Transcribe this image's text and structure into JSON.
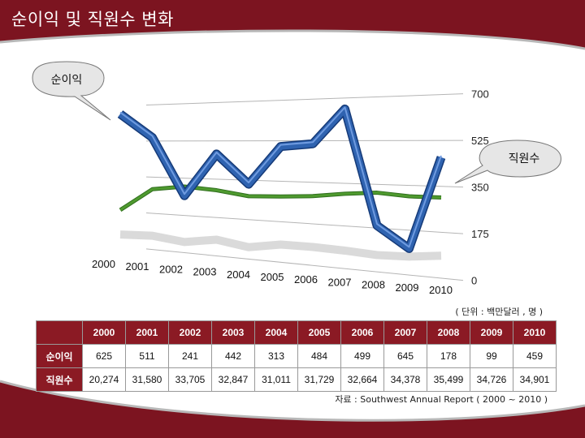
{
  "title": "순이익 및 직원수 변화",
  "unit_note": "( 단위 : 백만달러 , 명 )",
  "source_note": "자료 : Southwest Annual Report ( 2000 ~ 2010 )",
  "colors": {
    "background": "#7c1420",
    "net_income_line": "#2f63b0",
    "employees_line": "#4f9a2f",
    "table_header": "#8b1a24"
  },
  "chart_data": {
    "type": "line",
    "categories": [
      "2000",
      "2001",
      "2002",
      "2003",
      "2004",
      "2005",
      "2006",
      "2007",
      "2008",
      "2009",
      "2010"
    ],
    "series": [
      {
        "name": "순이익",
        "values": [
          625,
          511,
          241,
          442,
          313,
          484,
          499,
          645,
          178,
          99,
          459
        ]
      },
      {
        "name": "직원수",
        "values": [
          20274,
          31580,
          33705,
          32847,
          31011,
          31729,
          32664,
          34378,
          35499,
          34726,
          34901
        ]
      }
    ],
    "yticks": [
      "0",
      "175",
      "350",
      "525",
      "700"
    ],
    "ylim": [
      0,
      700
    ],
    "grid": true
  },
  "table": {
    "header": [
      "",
      "2000",
      "2001",
      "2002",
      "2003",
      "2004",
      "2005",
      "2006",
      "2007",
      "2008",
      "2009",
      "2010"
    ],
    "rows": [
      {
        "label": "순이익",
        "values": [
          "625",
          "511",
          "241",
          "442",
          "313",
          "484",
          "499",
          "645",
          "178",
          "99",
          "459"
        ]
      },
      {
        "label": "직원수",
        "values": [
          "20,274",
          "31,580",
          "33,705",
          "32,847",
          "31,011",
          "31,729",
          "32,664",
          "34,378",
          "35,499",
          "34,726",
          "34,901"
        ]
      }
    ]
  }
}
